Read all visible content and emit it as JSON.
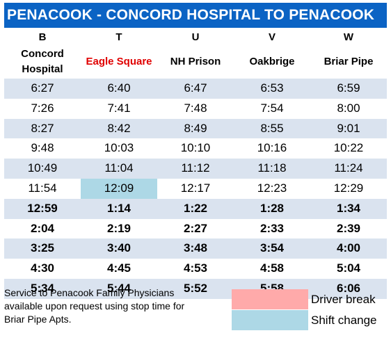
{
  "title": "PENACOOK - CONCORD HOSPITAL TO PENACOOK",
  "stops": [
    {
      "code": "B",
      "name_lines": [
        "Concord",
        "Hospital"
      ],
      "highlight": false
    },
    {
      "code": "T",
      "name_lines": [
        "Eagle Square"
      ],
      "highlight": true
    },
    {
      "code": "U",
      "name_lines": [
        "NH Prison"
      ],
      "highlight": false
    },
    {
      "code": "V",
      "name_lines": [
        "Oakbrige"
      ],
      "highlight": false
    },
    {
      "code": "W",
      "name_lines": [
        "Briar Pipe"
      ],
      "highlight": false
    }
  ],
  "colors": {
    "title_background": "#0b63c4",
    "row_shade": "#dae3ef",
    "driver_break": "#ffaaaa",
    "shift_change": "#add8e6",
    "highlight_text": "#e00000"
  },
  "schedule": [
    {
      "times": [
        "6:27",
        "6:40",
        "6:47",
        "6:53",
        "6:59"
      ],
      "bold": false,
      "shift_change_col": null
    },
    {
      "times": [
        "7:26",
        "7:41",
        "7:48",
        "7:54",
        "8:00"
      ],
      "bold": false,
      "shift_change_col": null
    },
    {
      "times": [
        "8:27",
        "8:42",
        "8:49",
        "8:55",
        "9:01"
      ],
      "bold": false,
      "shift_change_col": null
    },
    {
      "times": [
        "9:48",
        "10:03",
        "10:10",
        "10:16",
        "10:22"
      ],
      "bold": false,
      "shift_change_col": null
    },
    {
      "times": [
        "10:49",
        "11:04",
        "11:12",
        "11:18",
        "11:24"
      ],
      "bold": false,
      "shift_change_col": null
    },
    {
      "times": [
        "11:54",
        "12:09",
        "12:17",
        "12:23",
        "12:29"
      ],
      "bold": false,
      "shift_change_col": 1
    },
    {
      "times": [
        "12:59",
        "1:14",
        "1:22",
        "1:28",
        "1:34"
      ],
      "bold": true,
      "shift_change_col": null
    },
    {
      "times": [
        "2:04",
        "2:19",
        "2:27",
        "2:33",
        "2:39"
      ],
      "bold": true,
      "shift_change_col": null
    },
    {
      "times": [
        "3:25",
        "3:40",
        "3:48",
        "3:54",
        "4:00"
      ],
      "bold": true,
      "shift_change_col": null
    },
    {
      "times": [
        "4:30",
        "4:45",
        "4:53",
        "4:58",
        "5:04"
      ],
      "bold": true,
      "shift_change_col": null
    },
    {
      "times": [
        "5:34",
        "5:44",
        "5:52",
        "5:58",
        "6:06"
      ],
      "bold": true,
      "shift_change_col": null
    }
  ],
  "footnote": {
    "lines": [
      "Service to Penacook Family Physicians",
      "available upon request using stop time for",
      "Briar Pipe Apts."
    ]
  },
  "legend": {
    "driver_break": "Driver break",
    "shift_change": "Shift change"
  }
}
